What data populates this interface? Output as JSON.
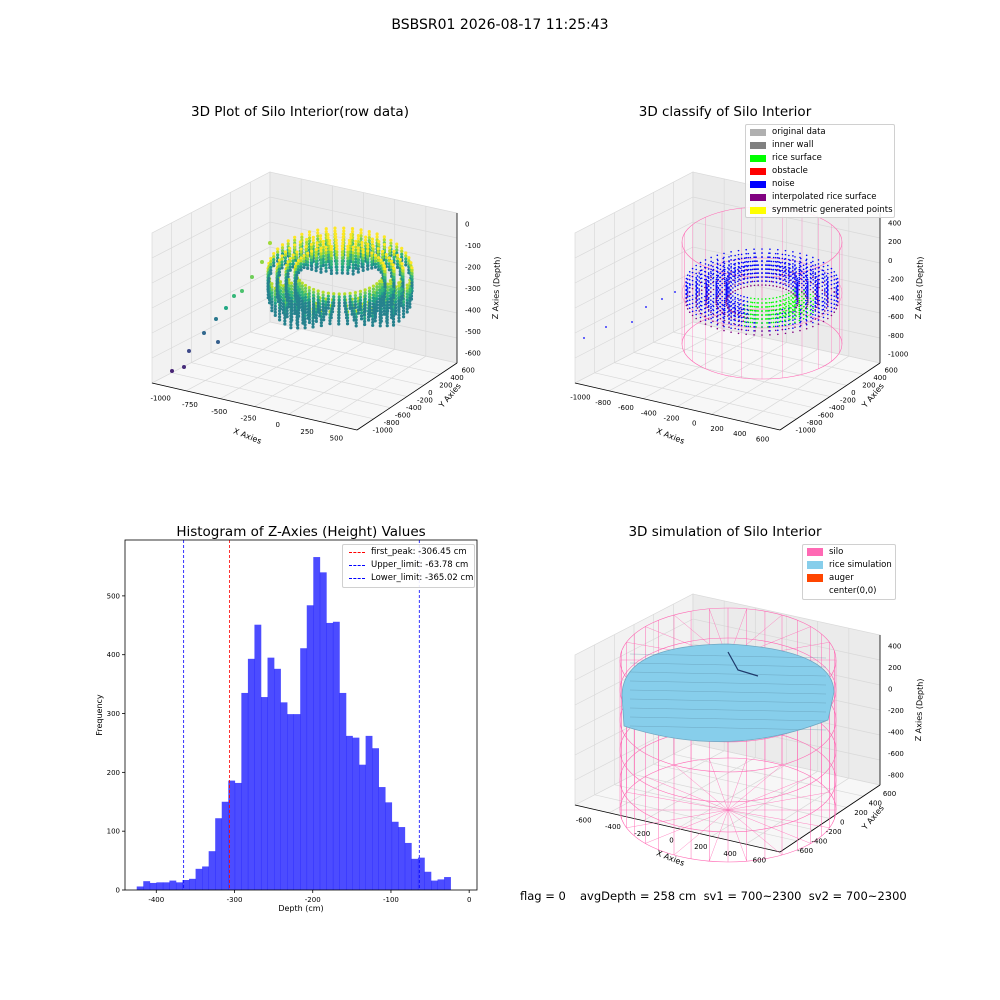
{
  "suptitle": "BSBSR01 2026-08-17 11:25:43",
  "panels": {
    "raw": {
      "title": "3D Plot of Silo Interior(row data)",
      "xlabel": "X Axies",
      "ylabel": "Y Axies",
      "zlabel": "Z Axies (Depth)",
      "xticks": [
        "-1000",
        "-750",
        "-500",
        "-250",
        "0",
        "250",
        "500"
      ],
      "yticks": [
        "600",
        "400",
        "200",
        "0",
        "-200",
        "-400",
        "-600",
        "-800",
        "-1000"
      ],
      "zticks": [
        "0",
        "-100",
        "-200",
        "-300",
        "-400",
        "-500",
        "-600"
      ]
    },
    "classify": {
      "title": "3D classify of Silo Interior",
      "xlabel": "X Axies",
      "ylabel": "Y Axies",
      "zlabel": "Z Axies (Depth)",
      "xticks": [
        "-1000",
        "-800",
        "-600",
        "-400",
        "-200",
        "0",
        "200",
        "400",
        "600"
      ],
      "yticks": [
        "600",
        "400",
        "200",
        "0",
        "-200",
        "-400",
        "-600",
        "-800",
        "-1000"
      ],
      "zticks": [
        "400",
        "200",
        "0",
        "-200",
        "-400",
        "-600",
        "-800",
        "-1000"
      ],
      "legend": [
        {
          "label": "original data",
          "color": "#b0b0b0"
        },
        {
          "label": "inner wall",
          "color": "#808080"
        },
        {
          "label": "rice surface",
          "color": "#00ff00"
        },
        {
          "label": "obstacle",
          "color": "#ff0000"
        },
        {
          "label": "noise",
          "color": "#0000ff"
        },
        {
          "label": "interpolated rice surface",
          "color": "#800080"
        },
        {
          "label": "symmetric generated points",
          "color": "#ffff00"
        }
      ]
    },
    "simulation": {
      "title": "3D simulation of Silo Interior",
      "xlabel": "X Axies",
      "ylabel": "Y Axies",
      "zlabel": "Z Axies (Depth)",
      "xticks": [
        "-600",
        "-400",
        "-200",
        "0",
        "200",
        "400",
        "600"
      ],
      "yticks": [
        "600",
        "400",
        "200",
        "0",
        "-200",
        "-400",
        "-600"
      ],
      "zticks": [
        "400",
        "200",
        "0",
        "-200",
        "-400",
        "-600",
        "-800"
      ],
      "legend": [
        {
          "label": "silo",
          "color": "#ff69b4"
        },
        {
          "label": "rice simulation",
          "color": "#87ceeb"
        },
        {
          "label": "auger",
          "color": "#ff4500"
        },
        {
          "label": "center(0,0)",
          "color": "#ffffff"
        }
      ]
    }
  },
  "chart_data": {
    "type": "bar",
    "title": "Histogram of Z-Axies (Height) Values",
    "xlabel": "Depth (cm)",
    "ylabel": "Frequency",
    "xlim": [
      -440,
      10
    ],
    "ylim": [
      0,
      595
    ],
    "xticks": [
      -400,
      -300,
      -200,
      -100,
      0
    ],
    "yticks": [
      0,
      100,
      200,
      300,
      400,
      500
    ],
    "bar_color": "#0000ff",
    "bin_start": -425.0,
    "bin_width": 8.36,
    "values": [
      6,
      15,
      12,
      13,
      13,
      16,
      13,
      17,
      19,
      36,
      40,
      66,
      122,
      150,
      186,
      182,
      335,
      393,
      451,
      328,
      395,
      376,
      319,
      299,
      299,
      411,
      484,
      566,
      540,
      454,
      456,
      335,
      262,
      259,
      213,
      262,
      241,
      175,
      149,
      116,
      107,
      80,
      53,
      55,
      31,
      16,
      18,
      22
    ],
    "lines": [
      {
        "label": "first_peak: -306.45 cm",
        "x": -306.45,
        "color": "#ff0000"
      },
      {
        "label": "Upper_limit: -63.78 cm",
        "x": -63.78,
        "color": "#0000ff"
      },
      {
        "label": "Lower_limit: -365.02 cm",
        "x": -365.02,
        "color": "#0000ff"
      }
    ],
    "legend_position": "upper right"
  },
  "footer": {
    "flag": "flag = 0",
    "stats": "avgDepth = 258 cm  sv1 = 700~2300  sv2 = 700~2300"
  }
}
